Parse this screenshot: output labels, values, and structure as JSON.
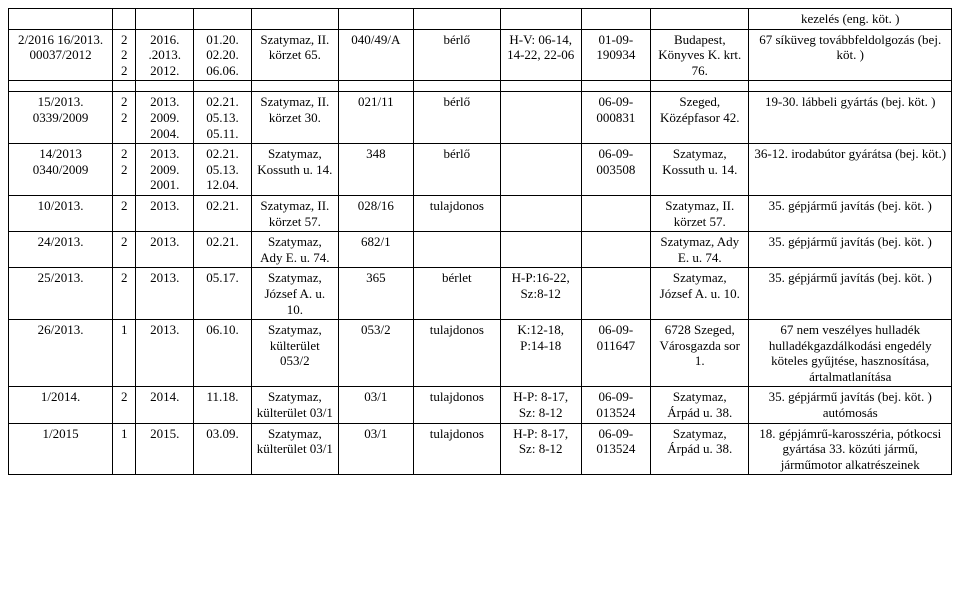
{
  "rows": [
    {
      "c1": "",
      "c2": "",
      "c3": "",
      "c4": "",
      "c5": "",
      "c6": "",
      "c7": "",
      "c8": "",
      "c9": "",
      "c10": "",
      "c11": "kezelés (eng. köt. )"
    },
    {
      "c1": "2/2016 16/2013. 00037/2012",
      "c2": "2 2 2",
      "c3": "2016. .2013. 2012.",
      "c4": "01.20. 02.20. 06.06.",
      "c5": "Szatymaz, II. körzet 65.",
      "c6": "040/49/A",
      "c7": "bérlő",
      "c8": "H-V: 06-14, 14-22, 22-06",
      "c9": "01-09-190934",
      "c10": "Budapest, Könyves K. krt. 76.",
      "c11": "67 síküveg továbbfeldolgozás (bej. köt. )"
    },
    {
      "spacer": true
    },
    {
      "c1": "15/2013. 0339/2009",
      "c2": "2 2",
      "c3": "2013. 2009. 2004.",
      "c4": "02.21. 05.13. 05.11.",
      "c5": "Szatymaz, II. körzet 30.",
      "c6": "021/11",
      "c7": "bérlő",
      "c8": "",
      "c9": "06-09-000831",
      "c10": "Szeged, Középfasor 42.",
      "c11": "19-30. lábbeli gyártás (bej. köt. )"
    },
    {
      "c1": "14/2013 0340/2009",
      "c2": "2 2",
      "c3": "2013. 2009. 2001.",
      "c4": "02.21. 05.13. 12.04.",
      "c5": "Szatymaz, Kossuth u. 14.",
      "c6": "348",
      "c7": "bérlő",
      "c8": "",
      "c9": "06-09-003508",
      "c10": "Szatymaz, Kossuth u. 14.",
      "c11": "36-12. irodabútor gyárátsa (bej. köt.)"
    },
    {
      "c1": "10/2013.",
      "c2": "2",
      "c3": "2013.",
      "c4": "02.21.",
      "c5": "Szatymaz, II. körzet 57.",
      "c6": "028/16",
      "c7": "tulajdonos",
      "c8": "",
      "c9": "",
      "c10": "Szatymaz, II. körzet 57.",
      "c11": "35. gépjármű javítás (bej. köt. )"
    },
    {
      "c1": "24/2013.",
      "c2": "2",
      "c3": "2013.",
      "c4": "02.21.",
      "c5": "Szatymaz, Ady E. u. 74.",
      "c6": "682/1",
      "c7": "",
      "c8": "",
      "c9": "",
      "c10": "Szatymaz, Ady E. u. 74.",
      "c11": "35. gépjármű javítás (bej. köt. )"
    },
    {
      "c1": "25/2013.",
      "c2": "2",
      "c3": "2013.",
      "c4": "05.17.",
      "c5": "Szatymaz, József A. u. 10.",
      "c6": "365",
      "c7": "bérlet",
      "c8": "H-P:16-22, Sz:8-12",
      "c9": "",
      "c10": "Szatymaz, József A. u. 10.",
      "c11": "35. gépjármű javítás (bej. köt. )"
    },
    {
      "c1": "26/2013.",
      "c2": "1",
      "c3": "2013.",
      "c4": "06.10.",
      "c5": "Szatymaz, külterület 053/2",
      "c6": "053/2",
      "c7": "tulajdonos",
      "c8": "K:12-18, P:14-18",
      "c9": "06-09-011647",
      "c10": "6728 Szeged, Városgazda sor 1.",
      "c11": "67 nem veszélyes hulladék hulladékgazdálkodási engedély köteles gyűjtése, hasznosítása, ártalmatlanítása"
    },
    {
      "c1": "1/2014.",
      "c2": "2",
      "c3": "2014.",
      "c4": "11.18.",
      "c5": "Szatymaz, külterület 03/1",
      "c6": "03/1",
      "c7": "tulajdonos",
      "c8": "H-P: 8-17, Sz: 8-12",
      "c9": "06-09-013524",
      "c10": "Szatymaz, Árpád u. 38.",
      "c11": "35. gépjármű javítás (bej. köt. ) autómosás"
    },
    {
      "c1": "1/2015",
      "c2": "1",
      "c3": "2015.",
      "c4": "03.09.",
      "c5": "Szatymaz, külterület 03/1",
      "c6": "03/1",
      "c7": "tulajdonos",
      "c8": "H-P: 8-17, Sz: 8-12",
      "c9": "06-09-013524",
      "c10": "Szatymaz, Árpád u. 38.",
      "c11": "18. gépjámrű-karosszéria, pótkocsi gyártása 33. közúti jármű, járműmotor alkatrészeinek"
    }
  ]
}
